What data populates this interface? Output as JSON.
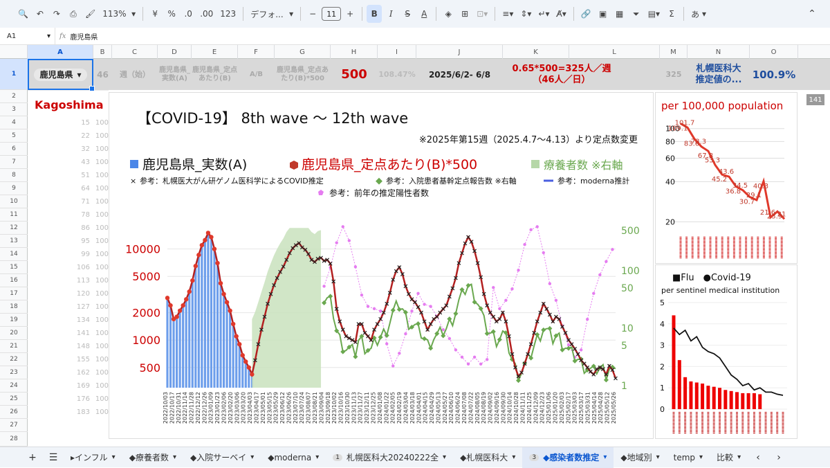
{
  "toolbar": {
    "zoom": "113%",
    "currency": "¥",
    "percent": "%",
    "dec_decrease": ".0",
    "dec_increase": ".00",
    "number_format": "123",
    "font": "デフォ...",
    "font_size": "11",
    "input_mode": "あ"
  },
  "formula_bar": {
    "cell_ref": "A1",
    "content": "鹿児島県"
  },
  "columns": [
    "A",
    "B",
    "C",
    "D",
    "E",
    "F",
    "G",
    "H",
    "I",
    "J",
    "K",
    "L",
    "M",
    "N",
    "O"
  ],
  "rows": [
    "1",
    "2",
    "3",
    "4",
    "5",
    "6",
    "7",
    "8",
    "9",
    "10",
    "11",
    "12",
    "13",
    "14",
    "15",
    "16",
    "17",
    "18",
    "19",
    "20",
    "21",
    "22",
    "23",
    "24",
    "25",
    "26",
    "27",
    "28"
  ],
  "row1": {
    "a1": "鹿児島県",
    "b1": "46",
    "c1": "週（始）",
    "d1": "鹿児島県_実数(A)",
    "e1": "鹿児島県_定点あたり(B)",
    "f1": "A/B",
    "g1": "鹿児島県_定点あたり(B)*500",
    "h1": "500",
    "i1": "108.47%",
    "j1": "2025/6/2- 6/8",
    "k1_line1": "0.65*500=325人／週",
    "k1_line2": "（46人／日）",
    "m1": "325",
    "n1_line1": "札幌医科大",
    "n1_line2": "推定値の...",
    "o1": "100.9%"
  },
  "column_c_values": [
    "15",
    "22",
    "32",
    "43",
    "51",
    "64",
    "71",
    "78",
    "86",
    "95",
    "99",
    "106",
    "113",
    "120",
    "127",
    "134",
    "141",
    "148",
    "155",
    "162",
    "169",
    "176",
    "183"
  ],
  "column_c_suffix": "100",
  "kagoshima_label": "Kagoshima",
  "scroll_badge": "141",
  "colors": {
    "red": "#cc0000",
    "blue": "#4a86e8",
    "green": "#6aa84f",
    "dark_red": "#7b1f1f",
    "pink": "#e57cf0",
    "black_x": "#222222"
  },
  "tabs": [
    {
      "label": "▸インフル",
      "count": ""
    },
    {
      "label": "◆療養者数",
      "count": ""
    },
    {
      "label": "◆入院サーベイ",
      "count": ""
    },
    {
      "label": "◆moderna",
      "count": ""
    },
    {
      "label": "札幌医科大20240222全",
      "count": "1"
    },
    {
      "label": "◆札幌医科大",
      "count": ""
    },
    {
      "label": "◆感染者数推定",
      "count": "3"
    },
    {
      "label": "◆地域別",
      "count": ""
    },
    {
      "label": "temp",
      "count": ""
    },
    {
      "label": "比較",
      "count": ""
    }
  ],
  "chart_data": [
    {
      "type": "line",
      "title": "【COVID-19】 8th wave 〜 12th wave",
      "subtitle": "※2025年第15週（2025.4.7〜4.13）より定点数変更",
      "legend": [
        "鹿児島県_実数(A)",
        "鹿児島県_定点あたり(B)*500",
        "療養者数 ※右軸",
        "参考：札幌医大がん研ゲノム医科学によるCOVID推定",
        "参考：入院患者基幹定点報告数 ※右軸",
        "参考：moderna推計",
        "参考：前年の推定陽性者数"
      ],
      "left_ticks": [
        "10000",
        "5000",
        "2000",
        "1000",
        "500"
      ],
      "right_ticks": [
        "500",
        "100",
        "50",
        "10",
        "5",
        "1"
      ],
      "x_labels": [
        "2022/10/03",
        "2022/10/17",
        "2022/10/31",
        "2022/11/14",
        "2022/11/28",
        "2022/12/12",
        "2022/12/26",
        "2023/01/09",
        "2023/01/23",
        "2023/02/06",
        "2023/02/20",
        "2023/03/06",
        "2023/03/20",
        "2023/04/03",
        "2023/04/17",
        "2023/05/01",
        "2023/05/15",
        "2023/05/29",
        "2023/06/12",
        "2023/06/26",
        "2023/07/10",
        "2023/07/24",
        "2023/08/07",
        "2023/08/21",
        "2023/09/04",
        "2023/09/18",
        "2023/10/02",
        "2023/10/16",
        "2023/10/30",
        "2023/11/13",
        "2023/11/27",
        "2023/12/11",
        "2023/12/25",
        "2024/01/08",
        "2024/01/22",
        "2024/02/05",
        "2024/02/19",
        "2024/03/04",
        "2024/03/18",
        "2024/04/01",
        "2024/04/15",
        "2024/04/29",
        "2024/05/13",
        "2024/05/27",
        "2024/06/10",
        "2024/06/24",
        "2024/07/08",
        "2024/07/22",
        "2024/08/05",
        "2024/08/19",
        "2024/09/02",
        "2024/09/16",
        "2024/09/30",
        "2024/10/14",
        "2024/10/28",
        "2024/11/11",
        "2024/11/25",
        "2024/12/09",
        "2024/12/23",
        "2025/01/06",
        "2025/01/20",
        "2025/02/03",
        "2025/02/17",
        "2025/03/03",
        "2025/03/17",
        "2025/03/31",
        "2025/04/14",
        "2025/04/28",
        "2025/05/12",
        "2025/05/26"
      ],
      "series_actual_A": [
        2900,
        2400,
        1700,
        1800,
        2100,
        2400,
        2800,
        3400,
        4500,
        6500,
        8600,
        11000,
        12500,
        15000,
        13500,
        10000,
        7000,
        4200,
        3200,
        2600,
        2100,
        1500,
        1100,
        900,
        680,
        580,
        500,
        420
      ],
      "series_per_sentinel_x500": [
        2900,
        2400,
        1700,
        1800,
        2100,
        2400,
        2800,
        3400,
        4500,
        6500,
        8600,
        11000,
        12500,
        15000,
        13500,
        10000,
        7000,
        4200,
        3200,
        2600,
        2100,
        1500,
        1100,
        900,
        680,
        580,
        500,
        420,
        600,
        900,
        1300,
        1800,
        2500,
        3200,
        4000,
        4800,
        5600,
        6400,
        7600,
        9000,
        10200,
        11000,
        11600,
        10400,
        9800,
        8800,
        7600,
        7200,
        7800,
        8000,
        7400,
        7600,
        6900,
        4400,
        2200,
        1600,
        1300,
        1100,
        1050,
        1000,
        950,
        1500,
        1500,
        1200,
        1100,
        1000,
        1300,
        1500,
        1700,
        2000,
        2500,
        3300,
        4600,
        5700,
        6300,
        5300,
        3900,
        3200,
        2800,
        2600,
        2300,
        2000,
        1600,
        1300,
        1500,
        1700,
        1800,
        2000,
        2200,
        2400,
        3000,
        3700,
        4800,
        7000,
        9000,
        11500,
        13500,
        12000,
        9500,
        7000,
        4900,
        3200,
        2400,
        2000,
        1800,
        1600,
        1700,
        2000,
        1600,
        1100,
        700,
        500,
        400,
        440,
        550,
        700,
        900,
        1200,
        1600,
        2000,
        2500,
        2200,
        1900,
        1600,
        1800,
        1700,
        1400,
        1200,
        1000,
        900,
        800,
        700,
        600,
        550,
        500,
        450,
        420,
        480,
        500,
        480,
        420,
        520,
        470,
        380
      ]
    },
    {
      "type": "line",
      "title": "per 100,000 population",
      "values": [
        109.1,
        101.7,
        83.6,
        73.3,
        67.8,
        53.3,
        45.2,
        43.6,
        36.8,
        34.5,
        30.7,
        29.1,
        40.3,
        21.6,
        23.9,
        21.0
      ],
      "y_ticks": [
        "100",
        "80",
        "60",
        "40",
        "20"
      ]
    },
    {
      "type": "bar",
      "title": "■Flu　●Covid-19",
      "subtitle": "per sentinel medical institution",
      "y_ticks": [
        "5",
        "4",
        "3",
        "2",
        "1",
        "0"
      ],
      "flu": [
        4.4,
        2.3,
        1.5,
        1.3,
        1.25,
        1.2,
        1.1,
        1.05,
        1.0,
        0.9,
        0.85,
        0.8,
        0.75,
        0.75,
        0.75,
        0.7,
        0.0,
        0.0,
        0.0,
        0.0
      ],
      "covid": [
        3.8,
        3.5,
        3.7,
        3.2,
        3.4,
        2.9,
        2.7,
        2.6,
        2.4,
        2.0,
        1.6,
        1.4,
        1.1,
        1.2,
        0.9,
        1.0,
        0.8,
        0.8,
        0.7,
        0.65
      ]
    }
  ]
}
